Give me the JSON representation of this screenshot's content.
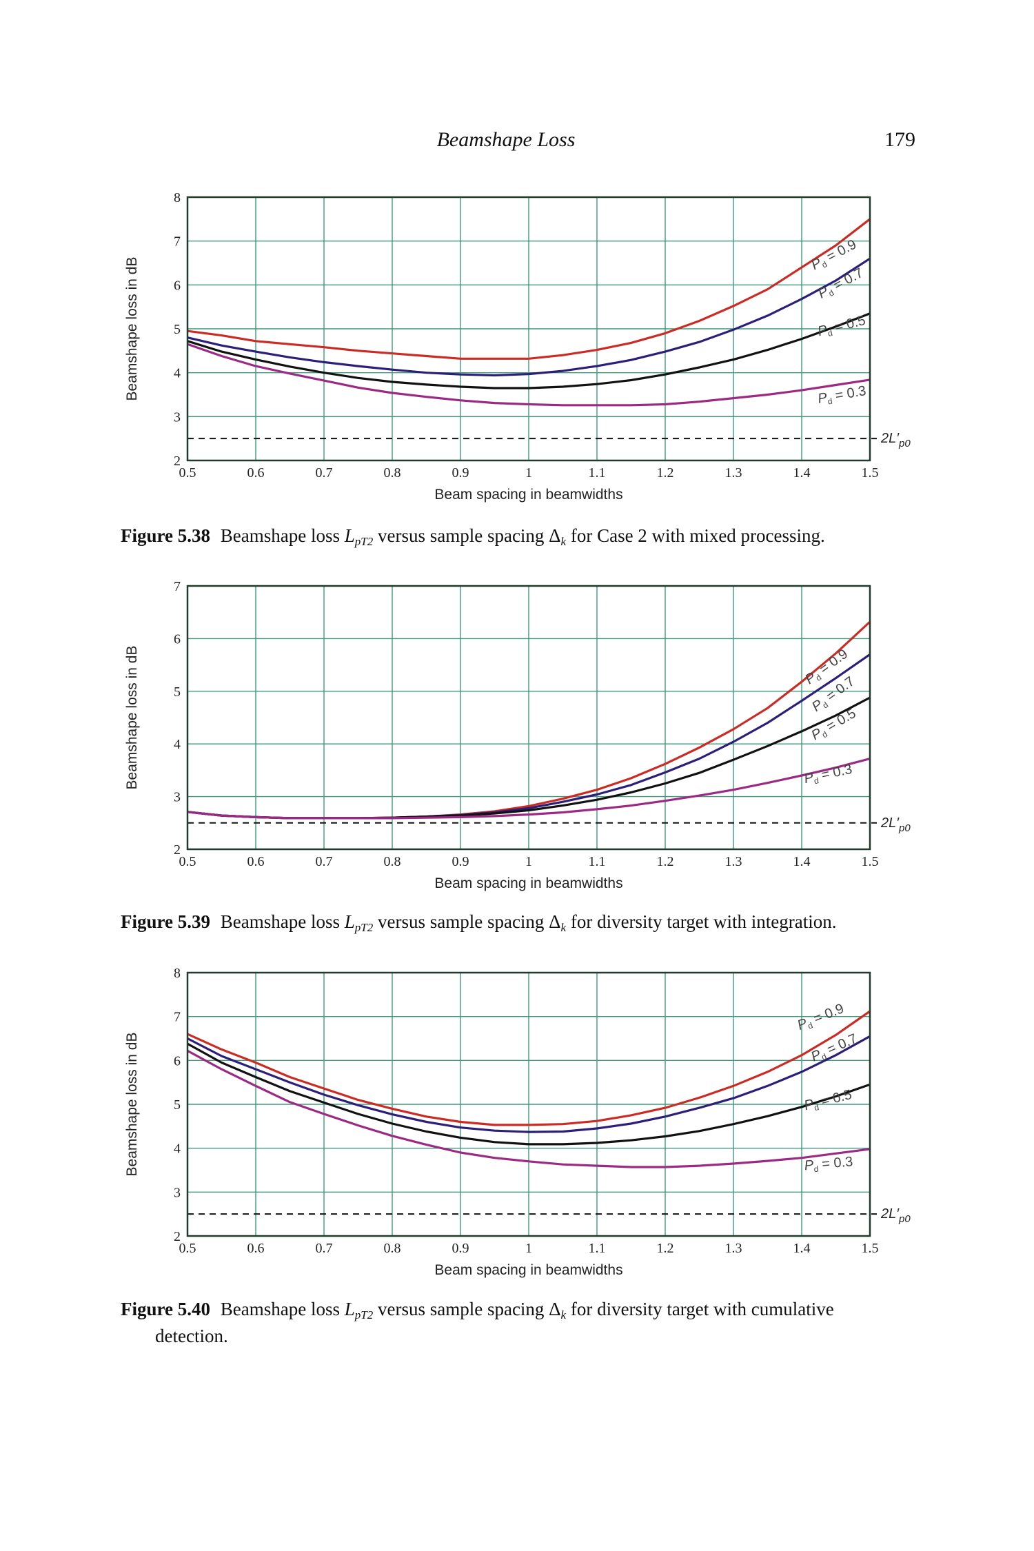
{
  "header": {
    "running_title": "Beamshape Loss",
    "page_number": "179"
  },
  "colors": {
    "grid": "#3f9a7c",
    "frame": "#1e3b2c",
    "pd09": "#cc2b24",
    "pd07": "#2c1f79",
    "pd05": "#111111",
    "pd03": "#9b2a84",
    "reference": "#111111"
  },
  "figures": [
    {
      "caption": {
        "label": "Figure 5.38",
        "pre": "Beamshape loss ",
        "sym": "L",
        "sym_sub": "pT2",
        "mid": " versus sample spacing Δ",
        "delta_sub": "k",
        "post": " for Case 2 with mixed processing.",
        "cont": ""
      }
    },
    {
      "caption": {
        "label": "Figure 5.39",
        "pre": "Beamshape loss ",
        "sym": "L",
        "sym_sub": "pT2",
        "mid": " versus sample spacing Δ",
        "delta_sub": "k",
        "post": " for diversity target with integration.",
        "cont": ""
      }
    },
    {
      "caption": {
        "label": "Figure 5.40",
        "pre": "Beamshape loss ",
        "sym": "L",
        "sym_sub": "pT2",
        "mid": " versus sample spacing Δ",
        "delta_sub": "k",
        "post": " for diversity target with cumulative",
        "cont": "detection."
      }
    }
  ],
  "chart_data": [
    {
      "type": "line",
      "title": "",
      "xlabel": "Beam spacing in beamwidths",
      "ylabel": "Beamshape loss in dB",
      "xlim": [
        0.5,
        1.5
      ],
      "ylim": [
        2,
        8
      ],
      "x_ticks": [
        "0.5",
        "0.6",
        "0.7",
        "0.8",
        "0.9",
        "1",
        "1.1",
        "1.2",
        "1.3",
        "1.4",
        "1.5"
      ],
      "y_ticks": [
        "2",
        "3",
        "4",
        "5",
        "6",
        "7",
        "8"
      ],
      "grid": true,
      "reference_line": {
        "value": 2.5,
        "label_main": "2L′",
        "label_sub": "p0"
      },
      "x": [
        0.5,
        0.55,
        0.6,
        0.65,
        0.7,
        0.75,
        0.8,
        0.85,
        0.9,
        0.95,
        1.0,
        1.05,
        1.1,
        1.15,
        1.2,
        1.25,
        1.3,
        1.35,
        1.4,
        1.45,
        1.5
      ],
      "series": [
        {
          "name": "Pd = 0.9",
          "label": "= 0.9",
          "values": [
            4.95,
            4.85,
            4.72,
            4.65,
            4.58,
            4.5,
            4.44,
            4.38,
            4.32,
            4.32,
            4.32,
            4.4,
            4.52,
            4.68,
            4.9,
            5.18,
            5.52,
            5.9,
            6.4,
            6.9,
            7.5
          ]
        },
        {
          "name": "Pd = 0.7",
          "label": "= 0.7",
          "values": [
            4.8,
            4.62,
            4.48,
            4.35,
            4.24,
            4.15,
            4.07,
            4.0,
            3.96,
            3.94,
            3.97,
            4.04,
            4.15,
            4.29,
            4.48,
            4.7,
            4.98,
            5.3,
            5.68,
            6.1,
            6.6
          ]
        },
        {
          "name": "Pd = 0.5",
          "label": "= 0.5",
          "values": [
            4.72,
            4.48,
            4.3,
            4.14,
            4.0,
            3.88,
            3.79,
            3.73,
            3.68,
            3.65,
            3.65,
            3.68,
            3.74,
            3.83,
            3.96,
            4.12,
            4.3,
            4.52,
            4.77,
            5.05,
            5.35
          ]
        },
        {
          "name": "Pd = 0.3",
          "label": "= 0.3",
          "values": [
            4.65,
            4.38,
            4.15,
            3.98,
            3.82,
            3.66,
            3.54,
            3.45,
            3.37,
            3.31,
            3.28,
            3.26,
            3.26,
            3.26,
            3.28,
            3.34,
            3.42,
            3.5,
            3.6,
            3.72,
            3.84
          ]
        }
      ],
      "series_label_positions": [
        [
          1.45,
          6.6
        ],
        [
          1.46,
          5.95
        ],
        [
          1.46,
          4.97
        ],
        [
          1.46,
          3.4
        ]
      ],
      "series_label_angles": [
        -28,
        -28,
        -14,
        -10
      ]
    },
    {
      "type": "line",
      "title": "",
      "xlabel": "Beam spacing in beamwidths",
      "ylabel": "Beamshape loss in dB",
      "xlim": [
        0.5,
        1.5
      ],
      "ylim": [
        2,
        7
      ],
      "x_ticks": [
        "0.5",
        "0.6",
        "0.7",
        "0.8",
        "0.9",
        "1",
        "1.1",
        "1.2",
        "1.3",
        "1.4",
        "1.5"
      ],
      "y_ticks": [
        "2",
        "3",
        "4",
        "5",
        "6",
        "7"
      ],
      "grid": true,
      "reference_line": {
        "value": 2.5,
        "label_main": "2L′",
        "label_sub": "p0"
      },
      "x": [
        0.5,
        0.55,
        0.6,
        0.65,
        0.7,
        0.75,
        0.8,
        0.85,
        0.9,
        0.95,
        1.0,
        1.05,
        1.1,
        1.15,
        1.2,
        1.25,
        1.3,
        1.35,
        1.4,
        1.45,
        1.5
      ],
      "series": [
        {
          "name": "Pd = 0.9",
          "label": "= 0.9",
          "values": [
            2.71,
            2.64,
            2.61,
            2.59,
            2.59,
            2.59,
            2.6,
            2.62,
            2.66,
            2.72,
            2.82,
            2.96,
            3.13,
            3.35,
            3.62,
            3.93,
            4.28,
            4.68,
            5.18,
            5.72,
            6.32
          ]
        },
        {
          "name": "Pd = 0.7",
          "label": "= 0.7",
          "values": [
            2.71,
            2.64,
            2.61,
            2.59,
            2.59,
            2.59,
            2.6,
            2.62,
            2.65,
            2.7,
            2.78,
            2.9,
            3.04,
            3.22,
            3.46,
            3.72,
            4.04,
            4.4,
            4.82,
            5.25,
            5.7
          ]
        },
        {
          "name": "Pd = 0.5",
          "label": "= 0.5",
          "values": [
            2.71,
            2.64,
            2.61,
            2.59,
            2.59,
            2.59,
            2.6,
            2.62,
            2.64,
            2.68,
            2.74,
            2.83,
            2.94,
            3.08,
            3.25,
            3.45,
            3.7,
            3.96,
            4.24,
            4.54,
            4.88
          ]
        },
        {
          "name": "Pd = 0.3",
          "label": "= 0.3",
          "values": [
            2.71,
            2.64,
            2.61,
            2.59,
            2.59,
            2.59,
            2.59,
            2.6,
            2.61,
            2.63,
            2.66,
            2.7,
            2.76,
            2.83,
            2.92,
            3.02,
            3.13,
            3.26,
            3.4,
            3.55,
            3.72
          ]
        }
      ],
      "series_label_positions": [
        [
          1.44,
          5.4
        ],
        [
          1.45,
          4.88
        ],
        [
          1.45,
          4.3
        ],
        [
          1.44,
          3.35
        ]
      ],
      "series_label_angles": [
        -36,
        -36,
        -30,
        -12
      ]
    },
    {
      "type": "line",
      "title": "",
      "xlabel": "Beam spacing in beamwidths",
      "ylabel": "Beamshape loss in dB",
      "xlim": [
        0.5,
        1.5
      ],
      "ylim": [
        2,
        8
      ],
      "x_ticks": [
        "0.5",
        "0.6",
        "0.7",
        "0.8",
        "0.9",
        "1",
        "1.1",
        "1.2",
        "1.3",
        "1.4",
        "1.5"
      ],
      "y_ticks": [
        "2",
        "3",
        "4",
        "5",
        "6",
        "7",
        "8"
      ],
      "grid": true,
      "reference_line": {
        "value": 2.5,
        "label_main": "2L′",
        "label_sub": "p0"
      },
      "x": [
        0.5,
        0.55,
        0.6,
        0.65,
        0.7,
        0.75,
        0.8,
        0.85,
        0.9,
        0.95,
        1.0,
        1.05,
        1.1,
        1.15,
        1.2,
        1.25,
        1.3,
        1.35,
        1.4,
        1.45,
        1.5
      ],
      "series": [
        {
          "name": "Pd = 0.9",
          "label": "= 0.9",
          "values": [
            6.6,
            6.25,
            5.95,
            5.62,
            5.36,
            5.1,
            4.9,
            4.72,
            4.6,
            4.53,
            4.53,
            4.55,
            4.62,
            4.75,
            4.92,
            5.15,
            5.42,
            5.74,
            6.12,
            6.58,
            7.12
          ]
        },
        {
          "name": "Pd = 0.7",
          "label": "= 0.7",
          "values": [
            6.5,
            6.1,
            5.8,
            5.5,
            5.22,
            4.98,
            4.77,
            4.6,
            4.47,
            4.4,
            4.37,
            4.38,
            4.45,
            4.56,
            4.72,
            4.92,
            5.14,
            5.42,
            5.74,
            6.12,
            6.55
          ]
        },
        {
          "name": "Pd = 0.5",
          "label": "= 0.5",
          "values": [
            6.38,
            5.95,
            5.62,
            5.3,
            5.04,
            4.78,
            4.56,
            4.38,
            4.24,
            4.14,
            4.09,
            4.09,
            4.12,
            4.18,
            4.27,
            4.39,
            4.55,
            4.73,
            4.94,
            5.18,
            5.45
          ]
        },
        {
          "name": "Pd = 0.3",
          "label": "= 0.3",
          "values": [
            6.22,
            5.8,
            5.42,
            5.05,
            4.78,
            4.52,
            4.28,
            4.08,
            3.9,
            3.78,
            3.7,
            3.63,
            3.6,
            3.57,
            3.57,
            3.6,
            3.65,
            3.71,
            3.78,
            3.88,
            3.98
          ]
        }
      ],
      "series_label_positions": [
        [
          1.43,
          6.9
        ],
        [
          1.45,
          6.2
        ],
        [
          1.44,
          5.0
        ],
        [
          1.44,
          3.55
        ]
      ],
      "series_label_angles": [
        -22,
        -24,
        -14,
        -5
      ]
    }
  ]
}
